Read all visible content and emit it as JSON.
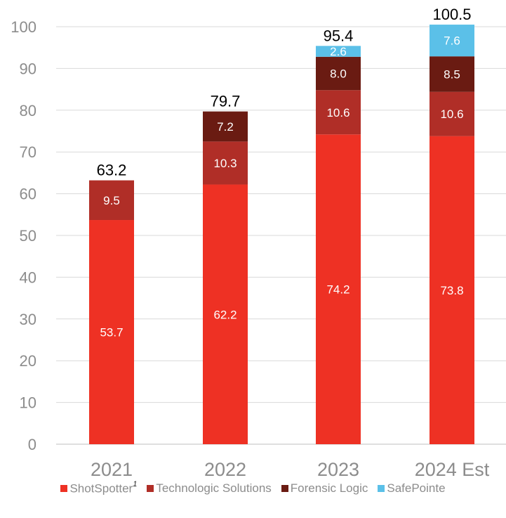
{
  "chart_data": {
    "type": "bar",
    "stacked": true,
    "categories": [
      "2021",
      "2022",
      "2023",
      "2024 Est"
    ],
    "series": [
      {
        "name": "ShotSpotter",
        "footnote": "1",
        "color": "#EE3124",
        "label_color": "#ffffff",
        "values": [
          53.7,
          62.2,
          74.2,
          73.8
        ]
      },
      {
        "name": "Technologic Solutions",
        "color": "#B02E27",
        "label_color": "#ffffff",
        "values": [
          9.5,
          10.3,
          10.6,
          10.6
        ]
      },
      {
        "name": "Forensic Logic",
        "color": "#6A1B12",
        "label_color": "#ffffff",
        "values": [
          null,
          7.2,
          8.0,
          8.5
        ]
      },
      {
        "name": "SafePointe",
        "color": "#5BC0E8",
        "label_color": "#ffffff",
        "values": [
          null,
          null,
          2.6,
          7.6
        ]
      }
    ],
    "totals": [
      "63.2",
      "79.7",
      "95.4",
      "100.5"
    ],
    "data_labels": [
      [
        "53.7",
        "9.5",
        null,
        null
      ],
      [
        "62.2",
        "10.3",
        "7.2",
        null
      ],
      [
        "74.2",
        "10.6",
        "8.0",
        "2.6"
      ],
      [
        "73.8",
        "10.6",
        "8.5",
        "7.6"
      ]
    ],
    "ylim": [
      0,
      100
    ],
    "yticks": [
      "0",
      "10",
      "20",
      "30",
      "40",
      "50",
      "60",
      "70",
      "80",
      "90",
      "100"
    ],
    "grid": true,
    "legend": "bottom",
    "axis_color": "#8c8c8c",
    "grid_color": "#d9d9d9"
  }
}
